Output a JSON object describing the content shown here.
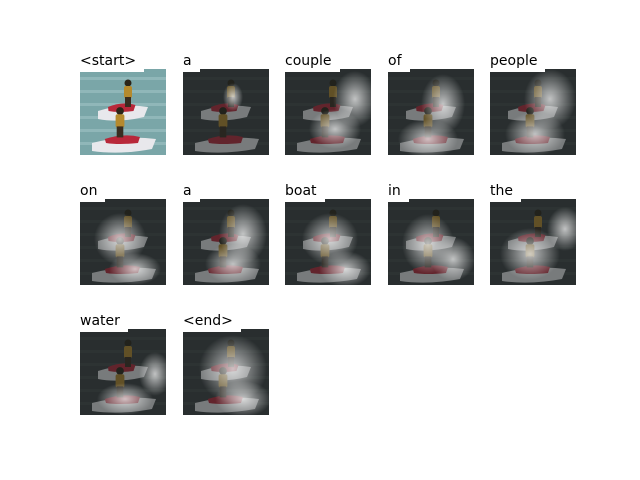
{
  "words": [
    "<start>",
    "a",
    "couple",
    "of",
    "people",
    "on",
    "a",
    "boat",
    "in",
    "the",
    "water",
    "<end>"
  ],
  "background": "#ffffff",
  "text_color": "#000000"
}
